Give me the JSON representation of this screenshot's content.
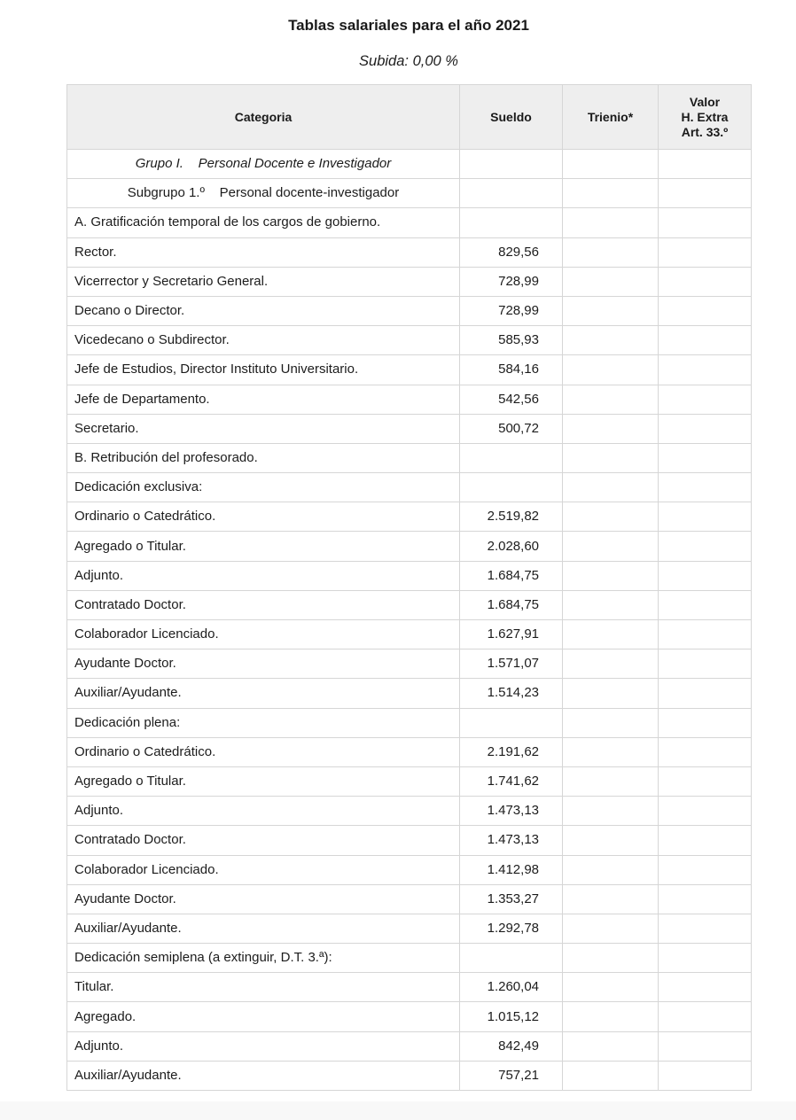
{
  "page": {
    "title": "Tablas salariales para el año 2021",
    "subtitle": "Subida: 0,00 %"
  },
  "colors": {
    "header_bg": "#eeeeee",
    "border": "#d6d6d6",
    "text": "#1c1c1c",
    "bottom_strip": "#f8f8f8",
    "page_bg": "#ffffff"
  },
  "table": {
    "headers": {
      "categoria": "Categoria",
      "sueldo": "Sueldo",
      "trienio": "Trienio*",
      "valor": "Valor\nH. Extra\nArt. 33.º"
    },
    "rows": [
      {
        "categoria": "Grupo I.    Personal Docente e Investigador",
        "sueldo": "",
        "trienio": "",
        "valor": "",
        "style": "group-italic-center"
      },
      {
        "categoria": "Subgrupo 1.º    Personal docente-investigador",
        "sueldo": "",
        "trienio": "",
        "valor": "",
        "style": "subgroup-center"
      },
      {
        "categoria": "A. Gratificación temporal de los cargos de gobierno.",
        "sueldo": "",
        "trienio": "",
        "valor": "",
        "style": "normal"
      },
      {
        "categoria": "Rector.",
        "sueldo": "829,56",
        "trienio": "",
        "valor": "",
        "style": "normal"
      },
      {
        "categoria": "Vicerrector y Secretario General.",
        "sueldo": "728,99",
        "trienio": "",
        "valor": "",
        "style": "normal"
      },
      {
        "categoria": "Decano o Director.",
        "sueldo": "728,99",
        "trienio": "",
        "valor": "",
        "style": "normal"
      },
      {
        "categoria": "Vicedecano o Subdirector.",
        "sueldo": "585,93",
        "trienio": "",
        "valor": "",
        "style": "normal"
      },
      {
        "categoria": "Jefe de Estudios, Director Instituto Universitario.",
        "sueldo": "584,16",
        "trienio": "",
        "valor": "",
        "style": "normal"
      },
      {
        "categoria": "Jefe de Departamento.",
        "sueldo": "542,56",
        "trienio": "",
        "valor": "",
        "style": "normal"
      },
      {
        "categoria": "Secretario.",
        "sueldo": "500,72",
        "trienio": "",
        "valor": "",
        "style": "normal"
      },
      {
        "categoria": "B. Retribución del profesorado.",
        "sueldo": "",
        "trienio": "",
        "valor": "",
        "style": "normal"
      },
      {
        "categoria": "Dedicación exclusiva:",
        "sueldo": "",
        "trienio": "",
        "valor": "",
        "style": "normal"
      },
      {
        "categoria": "Ordinario o Catedrático.",
        "sueldo": "2.519,82",
        "trienio": "",
        "valor": "",
        "style": "normal"
      },
      {
        "categoria": "Agregado o Titular.",
        "sueldo": "2.028,60",
        "trienio": "",
        "valor": "",
        "style": "normal"
      },
      {
        "categoria": "Adjunto.",
        "sueldo": "1.684,75",
        "trienio": "",
        "valor": "",
        "style": "normal"
      },
      {
        "categoria": "Contratado Doctor.",
        "sueldo": "1.684,75",
        "trienio": "",
        "valor": "",
        "style": "normal"
      },
      {
        "categoria": "Colaborador Licenciado.",
        "sueldo": "1.627,91",
        "trienio": "",
        "valor": "",
        "style": "normal"
      },
      {
        "categoria": "Ayudante Doctor.",
        "sueldo": "1.571,07",
        "trienio": "",
        "valor": "",
        "style": "normal"
      },
      {
        "categoria": "Auxiliar/Ayudante.",
        "sueldo": "1.514,23",
        "trienio": "",
        "valor": "",
        "style": "normal"
      },
      {
        "categoria": "Dedicación plena:",
        "sueldo": "",
        "trienio": "",
        "valor": "",
        "style": "normal"
      },
      {
        "categoria": "Ordinario o Catedrático.",
        "sueldo": "2.191,62",
        "trienio": "",
        "valor": "",
        "style": "normal"
      },
      {
        "categoria": "Agregado o Titular.",
        "sueldo": "1.741,62",
        "trienio": "",
        "valor": "",
        "style": "normal"
      },
      {
        "categoria": "Adjunto.",
        "sueldo": "1.473,13",
        "trienio": "",
        "valor": "",
        "style": "normal"
      },
      {
        "categoria": "Contratado Doctor.",
        "sueldo": "1.473,13",
        "trienio": "",
        "valor": "",
        "style": "normal"
      },
      {
        "categoria": "Colaborador Licenciado.",
        "sueldo": "1.412,98",
        "trienio": "",
        "valor": "",
        "style": "normal"
      },
      {
        "categoria": "Ayudante Doctor.",
        "sueldo": "1.353,27",
        "trienio": "",
        "valor": "",
        "style": "normal"
      },
      {
        "categoria": "Auxiliar/Ayudante.",
        "sueldo": "1.292,78",
        "trienio": "",
        "valor": "",
        "style": "normal"
      },
      {
        "categoria": "Dedicación semiplena (a extinguir, D.T. 3.ª):",
        "sueldo": "",
        "trienio": "",
        "valor": "",
        "style": "normal"
      },
      {
        "categoria": "Titular.",
        "sueldo": "1.260,04",
        "trienio": "",
        "valor": "",
        "style": "normal"
      },
      {
        "categoria": "Agregado.",
        "sueldo": "1.015,12",
        "trienio": "",
        "valor": "",
        "style": "normal"
      },
      {
        "categoria": "Adjunto.",
        "sueldo": "842,49",
        "trienio": "",
        "valor": "",
        "style": "normal"
      },
      {
        "categoria": "Auxiliar/Ayudante.",
        "sueldo": "757,21",
        "trienio": "",
        "valor": "",
        "style": "normal"
      }
    ]
  }
}
